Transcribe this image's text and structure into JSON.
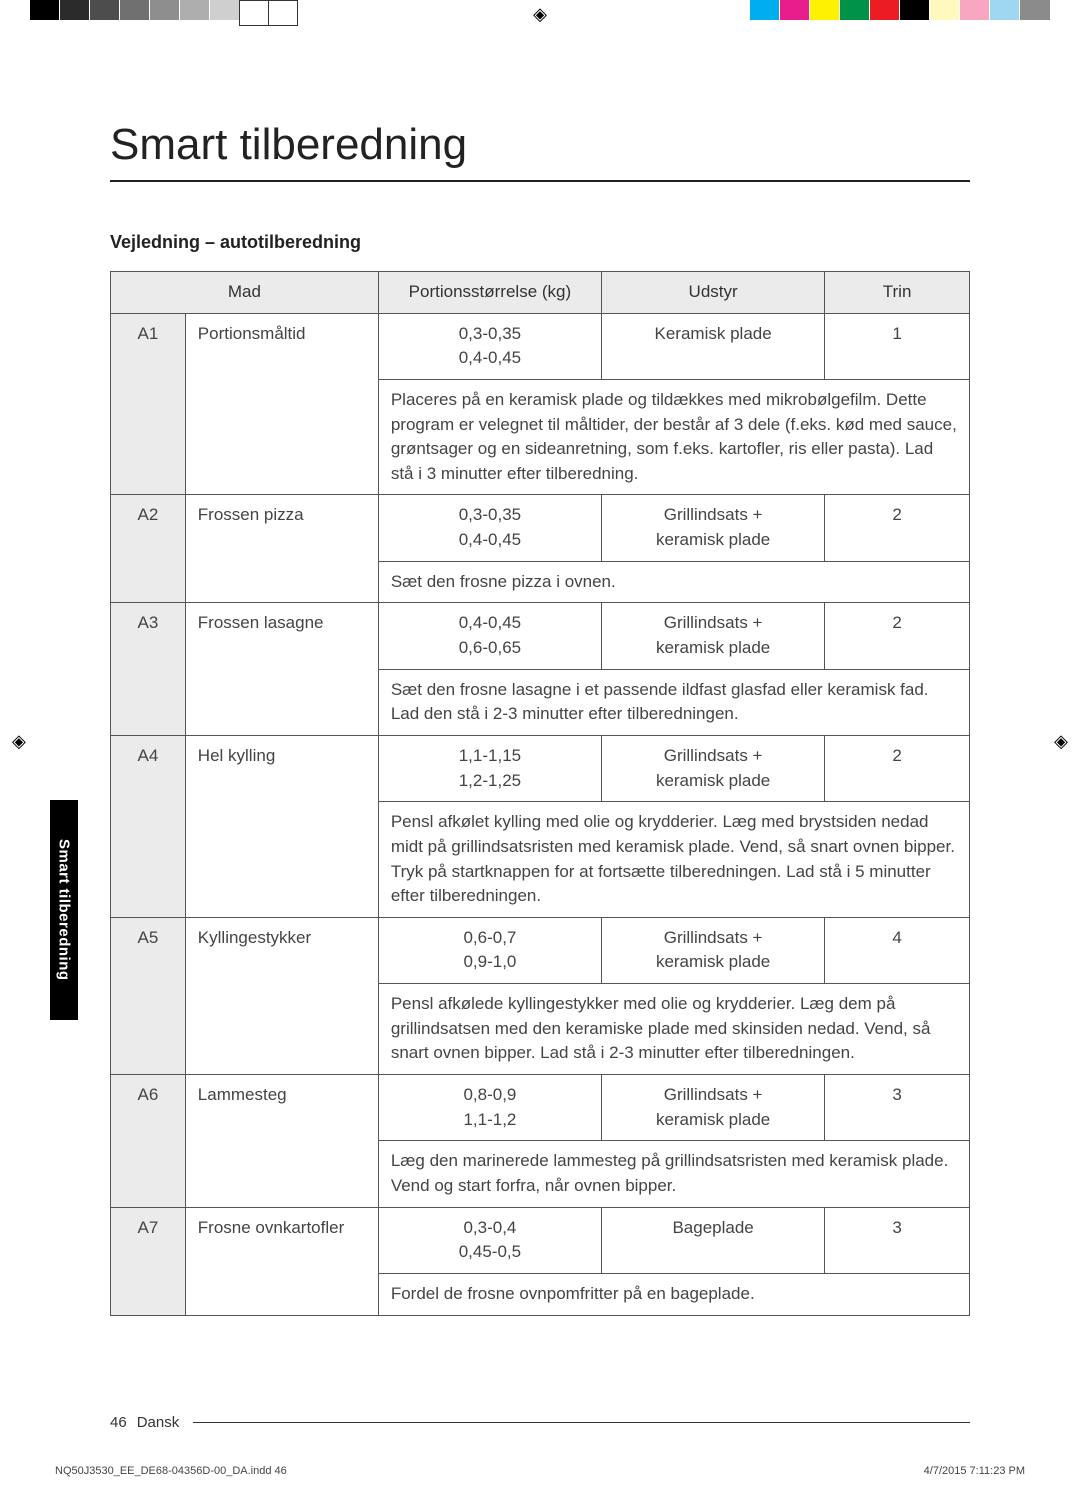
{
  "title": "Smart tilberedning",
  "subtitle": "Vejledning – autotilberedning",
  "side_tab": "Smart tilberedning",
  "headers": {
    "food": "Mad",
    "portion": "Portionsstørrelse (kg)",
    "equip": "Udstyr",
    "step": "Trin"
  },
  "rows": [
    {
      "code": "A1",
      "food": "Portionsmåltid",
      "portion": "0,3-0,35\n0,4-0,45",
      "equip": "Keramisk plade",
      "step": "1",
      "desc": "Placeres på en keramisk plade og tildækkes med mikrobølgefilm. Dette program er velegnet til måltider, der består af 3 dele (f.eks. kød med sauce, grøntsager og en sideanretning, som f.eks. kartofler, ris eller pasta). Lad stå i 3 minutter efter tilberedning."
    },
    {
      "code": "A2",
      "food": "Frossen pizza",
      "portion": "0,3-0,35\n0,4-0,45",
      "equip": "Grillindsats + keramisk plade",
      "step": "2",
      "desc": "Sæt den frosne pizza i ovnen."
    },
    {
      "code": "A3",
      "food": "Frossen lasagne",
      "portion": "0,4-0,45\n0,6-0,65",
      "equip": "Grillindsats + keramisk plade",
      "step": "2",
      "desc": "Sæt den frosne lasagne i et passende ildfast glasfad eller keramisk fad. Lad den stå i 2-3 minutter efter tilberedningen."
    },
    {
      "code": "A4",
      "food": "Hel kylling",
      "portion": "1,1-1,15\n1,2-1,25",
      "equip": "Grillindsats + keramisk plade",
      "step": "2",
      "desc": "Pensl afkølet kylling med olie og krydderier. Læg med brystsiden nedad midt på grillindsatsristen med keramisk plade. Vend, så snart ovnen bipper. Tryk på startknappen for at fortsætte tilberedningen. Lad stå i 5 minutter efter tilberedningen."
    },
    {
      "code": "A5",
      "food": "Kyllingestykker",
      "portion": "0,6-0,7\n0,9-1,0",
      "equip": "Grillindsats + keramisk plade",
      "step": "4",
      "desc": "Pensl afkølede kyllingestykker med olie og krydderier. Læg dem på grillindsatsen med den keramiske plade med skinsiden nedad. Vend, så snart ovnen bipper. Lad stå i 2-3 minutter efter tilberedningen."
    },
    {
      "code": "A6",
      "food": "Lammesteg",
      "portion": "0,8-0,9\n1,1-1,2",
      "equip": "Grillindsats + keramisk plade",
      "step": "3",
      "desc": "Læg den marinerede lammesteg på grillindsatsristen med keramisk plade. Vend og start forfra, når ovnen bipper."
    },
    {
      "code": "A7",
      "food": "Frosne ovnkartofler",
      "portion": "0,3-0,4\n0,45-0,5",
      "equip": "Bageplade",
      "step": "3",
      "desc": "Fordel de frosne ovnpomfritter på en bageplade."
    }
  ],
  "footer": {
    "page": "46",
    "lang": "Dansk"
  },
  "small_footer": {
    "left": "NQ50J3530_EE_DE68-04356D-00_DA.indd   46",
    "right": "4/7/2015   7:11:23 PM"
  },
  "bars": {
    "left": [
      "#000000",
      "#2b2b2b",
      "#4d4d4d",
      "#707070",
      "#8e8e8e",
      "#aeaeae",
      "#cfcfcf",
      "#ffffff",
      "#ffffff"
    ],
    "right": [
      "#00adee",
      "#e71e8b",
      "#fff200",
      "#009347",
      "#ec1c24",
      "#000000",
      "#fff9c0",
      "#f7a8c0",
      "#9fd7f0",
      "#8b8b8b"
    ]
  }
}
